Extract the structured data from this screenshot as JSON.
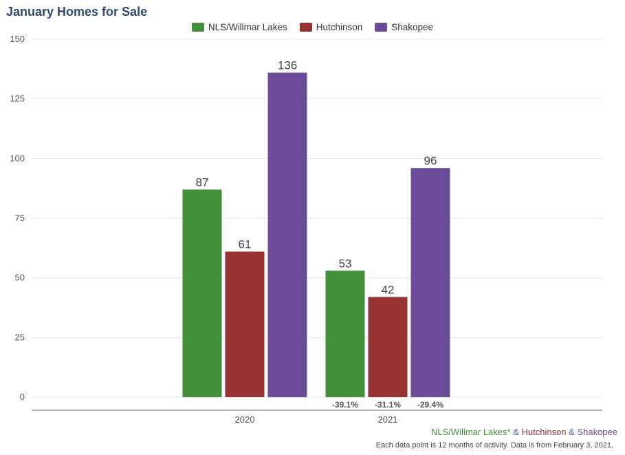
{
  "chart_data": {
    "type": "bar",
    "title": "January Homes for Sale",
    "categories": [
      "2020",
      "2021"
    ],
    "series": [
      {
        "name": "NLS/Willmar Lakes",
        "color": "#43903a",
        "values": [
          87,
          53
        ]
      },
      {
        "name": "Hutchinson",
        "color": "#983131",
        "values": [
          61,
          42
        ]
      },
      {
        "name": "Shakopee",
        "color": "#6c4c9a",
        "values": [
          136,
          96
        ]
      }
    ],
    "change_labels": [
      "-39.1%",
      "-31.1%",
      "-29.4%"
    ],
    "ylim": [
      0,
      150
    ],
    "yticks": [
      0,
      25,
      50,
      75,
      100,
      125,
      150
    ],
    "xlabel": "",
    "ylabel": "",
    "grid": true,
    "legend_position": "top-center"
  },
  "footer": {
    "names": [
      {
        "text": "NLS/Willmar Lakes*",
        "color": "#43903a"
      },
      {
        "text": " & ",
        "color": "#4a6aa5"
      },
      {
        "text": "Hutchinson",
        "color": "#983131"
      },
      {
        "text": " & ",
        "color": "#4a6aa5"
      },
      {
        "text": "Shakopee",
        "color": "#6c4c9a"
      }
    ],
    "note": "Each data point is 12 months of activity. Data is from February 3, 2021."
  },
  "colors": {
    "title": "#2e4a72",
    "grid": "#e3e3e3",
    "axis": "#9a9a9a",
    "tick_text": "#555555",
    "value_label": "#444444",
    "change_label": "#555555"
  }
}
